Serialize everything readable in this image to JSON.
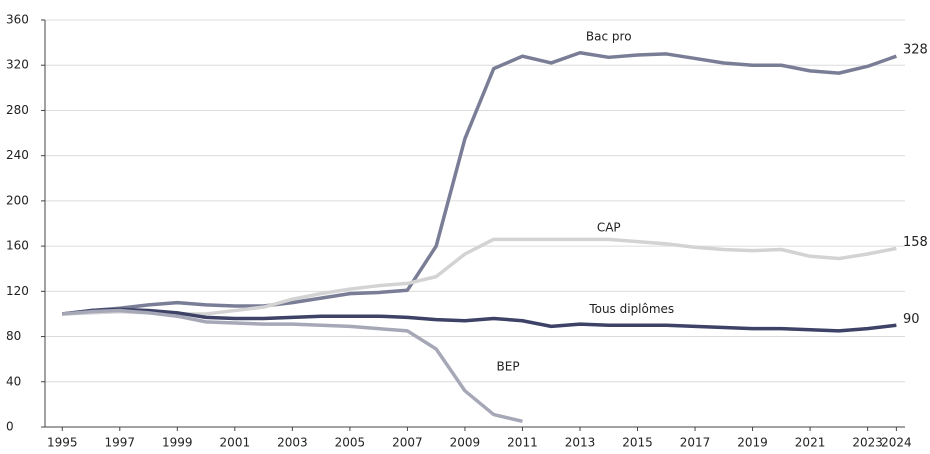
{
  "chart_data": {
    "type": "line",
    "x": [
      1995,
      1996,
      1997,
      1998,
      1999,
      2000,
      2001,
      2002,
      2003,
      2004,
      2005,
      2006,
      2007,
      2008,
      2009,
      2010,
      2011,
      2012,
      2013,
      2014,
      2015,
      2016,
      2017,
      2018,
      2019,
      2020,
      2021,
      2022,
      2023,
      2024
    ],
    "series": [
      {
        "name": "Bac pro",
        "color": "#7a7d96",
        "values": [
          100,
          103,
          105,
          108,
          110,
          108,
          107,
          107,
          110,
          114,
          118,
          119,
          121,
          160,
          255,
          317,
          328,
          322,
          331,
          327,
          329,
          330,
          326,
          322,
          320,
          320,
          315,
          313,
          319,
          328
        ]
      },
      {
        "name": "CAP",
        "color": "#d3d3d3",
        "values": [
          100,
          101,
          102,
          101,
          100,
          100,
          103,
          106,
          113,
          118,
          122,
          125,
          127,
          133,
          153,
          166,
          166,
          166,
          166,
          166,
          164,
          162,
          159,
          157,
          156,
          157,
          151,
          149,
          153,
          158
        ]
      },
      {
        "name": "Tous diplômes",
        "color": "#3d4266",
        "values": [
          100,
          103,
          104,
          103,
          101,
          97,
          96,
          96,
          97,
          98,
          98,
          98,
          97,
          95,
          94,
          96,
          94,
          89,
          91,
          90,
          90,
          90,
          89,
          88,
          87,
          87,
          86,
          85,
          87,
          90
        ]
      },
      {
        "name": "BEP",
        "color": "#a6a8b8",
        "values": [
          100,
          102,
          103,
          101,
          98,
          93,
          92,
          91,
          91,
          90,
          89,
          87,
          85,
          69,
          32,
          11,
          5,
          null,
          null,
          null,
          null,
          null,
          null,
          null,
          null,
          null,
          null,
          null,
          null,
          null
        ]
      }
    ],
    "xlim": [
      1994.4,
      2024.3
    ],
    "xticks": [
      1995,
      1997,
      1999,
      2001,
      2003,
      2005,
      2007,
      2009,
      2011,
      2013,
      2015,
      2017,
      2019,
      2021,
      2023,
      2024
    ],
    "ylim": [
      0,
      360
    ],
    "yticks": [
      0,
      40,
      80,
      120,
      160,
      200,
      240,
      280,
      320,
      360
    ],
    "grid": true
  }
}
